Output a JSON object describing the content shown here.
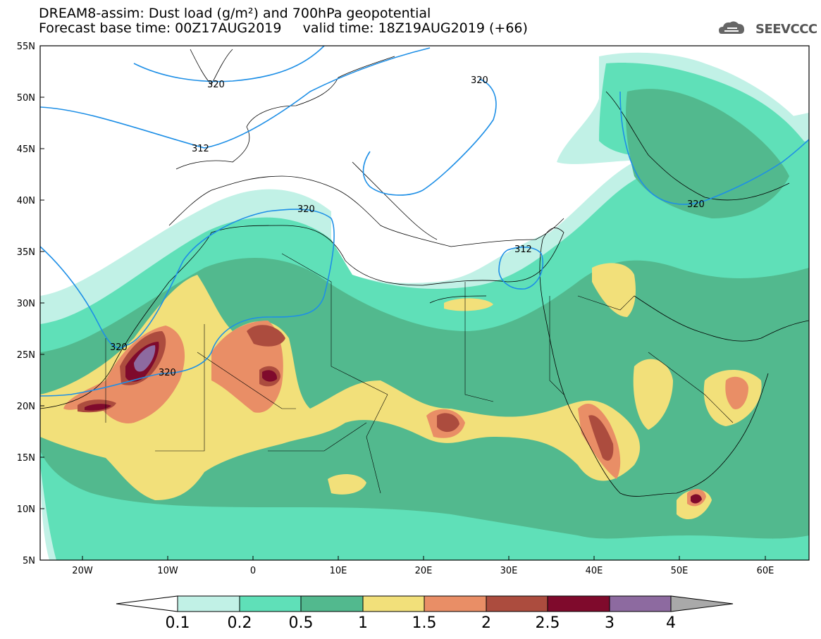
{
  "header": {
    "line1": "DREAM8-assim: Dust load (g/m²) and 700hPa geopotential",
    "line2": "Forecast base time: 00Z17AUG2019     valid time: 18Z19AUG2019 (+66)"
  },
  "logo": {
    "text": "SEEVCCC",
    "icon": "cloud-icon"
  },
  "axes": {
    "lat_labels": [
      "55N",
      "50N",
      "45N",
      "40N",
      "35N",
      "30N",
      "25N",
      "20N",
      "15N",
      "10N",
      "5N"
    ],
    "lon_labels": [
      "20W",
      "10W",
      "0",
      "10E",
      "20E",
      "30E",
      "40E",
      "50E",
      "60E"
    ]
  },
  "contour_labels": [
    "320",
    "312",
    "320",
    "320",
    "312",
    "320",
    "320",
    "320"
  ],
  "colorbar": {
    "labels": [
      "0.1",
      "0.2",
      "0.5",
      "1",
      "1.5",
      "2",
      "2.5",
      "3",
      "4"
    ],
    "colors": [
      "#c1f1e6",
      "#5fe0b8",
      "#52b98e",
      "#f2e07a",
      "#e98e66",
      "#ac4c3e",
      "#7f0a2c",
      "#8d6aa0",
      "#a9a9a9"
    ]
  }
}
